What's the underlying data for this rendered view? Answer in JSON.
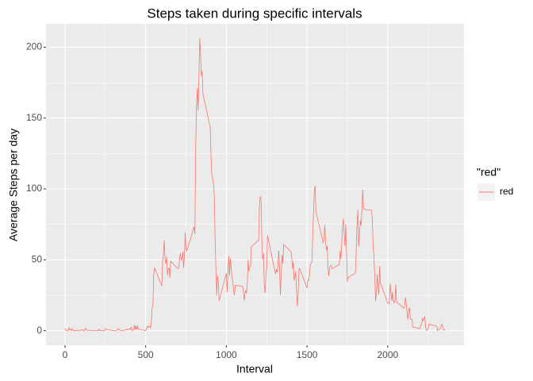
{
  "chart_data": {
    "type": "line",
    "title": "Steps taken during specific intervals",
    "x_label": "Interval",
    "y_label": "Average Steps per day",
    "legend_title": "\"red\"",
    "legend_position": "right",
    "grid": true,
    "background": "#ebebeb",
    "x_minor_grid": [
      250,
      750,
      1250,
      1750,
      2250
    ],
    "y_minor_grid": [
      25,
      75,
      125,
      175
    ],
    "xlim": [
      -117.75,
      2472.75
    ],
    "ylim": [
      -10.31,
      216.48
    ],
    "xticks": [
      0,
      500,
      1000,
      1500,
      2000
    ],
    "yticks": [
      0,
      50,
      100,
      150,
      200
    ],
    "x": [
      0,
      5,
      10,
      15,
      20,
      25,
      30,
      35,
      40,
      45,
      50,
      55,
      100,
      105,
      110,
      115,
      120,
      125,
      130,
      135,
      140,
      145,
      150,
      155,
      200,
      205,
      210,
      215,
      220,
      225,
      230,
      235,
      240,
      245,
      250,
      255,
      300,
      305,
      310,
      315,
      320,
      325,
      330,
      335,
      340,
      345,
      350,
      355,
      400,
      405,
      410,
      415,
      420,
      425,
      430,
      435,
      440,
      445,
      450,
      455,
      500,
      505,
      510,
      515,
      520,
      525,
      530,
      535,
      540,
      545,
      550,
      555,
      600,
      605,
      610,
      615,
      620,
      625,
      630,
      635,
      640,
      645,
      650,
      655,
      700,
      705,
      710,
      715,
      720,
      725,
      730,
      735,
      740,
      745,
      750,
      755,
      800,
      805,
      810,
      815,
      820,
      825,
      830,
      835,
      840,
      845,
      850,
      855,
      900,
      905,
      910,
      915,
      920,
      925,
      930,
      935,
      940,
      945,
      950,
      955,
      1000,
      1005,
      1010,
      1015,
      1020,
      1025,
      1030,
      1035,
      1040,
      1045,
      1050,
      1055,
      1100,
      1105,
      1110,
      1115,
      1120,
      1125,
      1130,
      1135,
      1140,
      1145,
      1150,
      1155,
      1200,
      1205,
      1210,
      1215,
      1220,
      1225,
      1230,
      1235,
      1240,
      1245,
      1250,
      1255,
      1300,
      1305,
      1310,
      1315,
      1320,
      1325,
      1330,
      1335,
      1340,
      1345,
      1350,
      1355,
      1400,
      1405,
      1410,
      1415,
      1420,
      1425,
      1430,
      1435,
      1440,
      1445,
      1450,
      1455,
      1500,
      1505,
      1510,
      1515,
      1520,
      1525,
      1530,
      1535,
      1540,
      1545,
      1550,
      1555,
      1600,
      1605,
      1610,
      1615,
      1620,
      1625,
      1630,
      1635,
      1640,
      1645,
      1650,
      1655,
      1700,
      1705,
      1710,
      1715,
      1720,
      1725,
      1730,
      1735,
      1740,
      1745,
      1750,
      1755,
      1800,
      1805,
      1810,
      1815,
      1820,
      1825,
      1830,
      1835,
      1840,
      1845,
      1850,
      1855,
      1900,
      1905,
      1910,
      1915,
      1920,
      1925,
      1930,
      1935,
      1940,
      1945,
      1950,
      1955,
      2000,
      2005,
      2010,
      2015,
      2020,
      2025,
      2030,
      2035,
      2040,
      2045,
      2050,
      2055,
      2100,
      2105,
      2110,
      2115,
      2120,
      2125,
      2130,
      2135,
      2140,
      2145,
      2150,
      2155,
      2200,
      2205,
      2210,
      2215,
      2220,
      2225,
      2230,
      2235,
      2240,
      2245,
      2250,
      2255,
      2300,
      2305,
      2310,
      2315,
      2320,
      2325,
      2330,
      2335,
      2340,
      2345,
      2350,
      2355
    ],
    "series": [
      {
        "name": "red",
        "color": "#f8766d",
        "values": [
          1.7,
          0.3,
          0.1,
          0.2,
          0.1,
          2.1,
          0.5,
          0.9,
          0,
          1.5,
          0.3,
          0.1,
          0.3,
          0.7,
          0.2,
          0.3,
          0,
          1.1,
          1.8,
          0.2,
          0.2,
          0.4,
          0.3,
          0,
          0,
          0,
          1.1,
          0,
          0,
          0.1,
          0,
          0.2,
          0,
          0,
          1.5,
          0.9,
          0,
          0,
          0,
          0,
          0.2,
          0.6,
          1.6,
          0.6,
          0.5,
          0.1,
          0,
          0,
          1.2,
          0.9,
          2.6,
          0,
          0.3,
          0.4,
          4.1,
          0.7,
          3.5,
          0.8,
          3.1,
          1.1,
          0,
          1.6,
          3.0,
          2.2,
          3.3,
          3.0,
          2.1,
          6.1,
          16.0,
          18.3,
          39.5,
          44.5,
          31.5,
          49.3,
          53.8,
          63.5,
          50.0,
          47.1,
          52.2,
          39.3,
          44.0,
          44.2,
          37.4,
          49.0,
          43.8,
          44.4,
          50.5,
          54.5,
          49.9,
          51.0,
          55.7,
          44.3,
          52.3,
          69.5,
          57.8,
          56.2,
          73.4,
          68.2,
          129.4,
          157.5,
          171.2,
          155.4,
          177.3,
          206.2,
          195.9,
          179.6,
          183.4,
          167.0,
          143.5,
          124.0,
          109.1,
          108.1,
          103.7,
          96.0,
          66.2,
          45.2,
          24.8,
          38.8,
          35.0,
          21.1,
          40.6,
          27.0,
          42.4,
          52.7,
          38.9,
          50.8,
          44.3,
          37.4,
          34.7,
          28.3,
          25.1,
          31.9,
          31.4,
          29.7,
          21.3,
          25.5,
          28.4,
          26.5,
          33.4,
          50.0,
          42.0,
          44.6,
          46.0,
          59.2,
          63.9,
          87.7,
          94.8,
          92.8,
          63.4,
          50.2,
          54.5,
          32.4,
          26.5,
          37.7,
          45.1,
          67.3,
          42.3,
          39.9,
          43.3,
          41.0,
          46.2,
          56.4,
          42.8,
          25.1,
          40.0,
          53.5,
          47.3,
          60.8,
          55.8,
          52.0,
          43.6,
          48.7,
          35.5,
          37.5,
          41.8,
          27.5,
          17.1,
          26.1,
          43.6,
          43.8,
          30.0,
          36.1,
          35.5,
          38.8,
          46.0,
          47.8,
          48.1,
          65.3,
          82.9,
          98.7,
          102.1,
          84.0,
          62.1,
          64.1,
          74.5,
          63.2,
          56.9,
          59.8,
          43.9,
          38.6,
          44.7,
          45.5,
          46.2,
          43.7,
          46.6,
          56.3,
          50.7,
          61.2,
          72.7,
          78.9,
          68.9,
          59.7,
          75.1,
          56.5,
          34.8,
          37.5,
          40.7,
          58.0,
          74.7,
          85.3,
          59.3,
          67.8,
          77.7,
          74.2,
          85.3,
          99.5,
          86.6,
          85.6,
          84.9,
          77.8,
          58.0,
          53.4,
          36.3,
          20.7,
          27.4,
          40.0,
          30.2,
          25.5,
          45.7,
          33.5,
          19.6,
          19.0,
          19.3,
          33.3,
          26.8,
          21.2,
          27.3,
          21.3,
          19.5,
          21.3,
          32.3,
          20.2,
          15.9,
          17.2,
          23.5,
          19.2,
          12.5,
          8.0,
          14.7,
          16.3,
          8.7,
          7.8,
          8.1,
          2.6,
          1.5,
          3.7,
          4.8,
          8.5,
          7.1,
          8.7,
          9.8,
          2.2,
          0.3,
          0.1,
          1.6,
          4.6,
          3.3,
          2.8,
          0,
          0.8,
          1.0,
          1.6,
          2.6,
          4.7,
          3.3,
          0.6,
          0.2,
          1.1
        ]
      }
    ]
  }
}
